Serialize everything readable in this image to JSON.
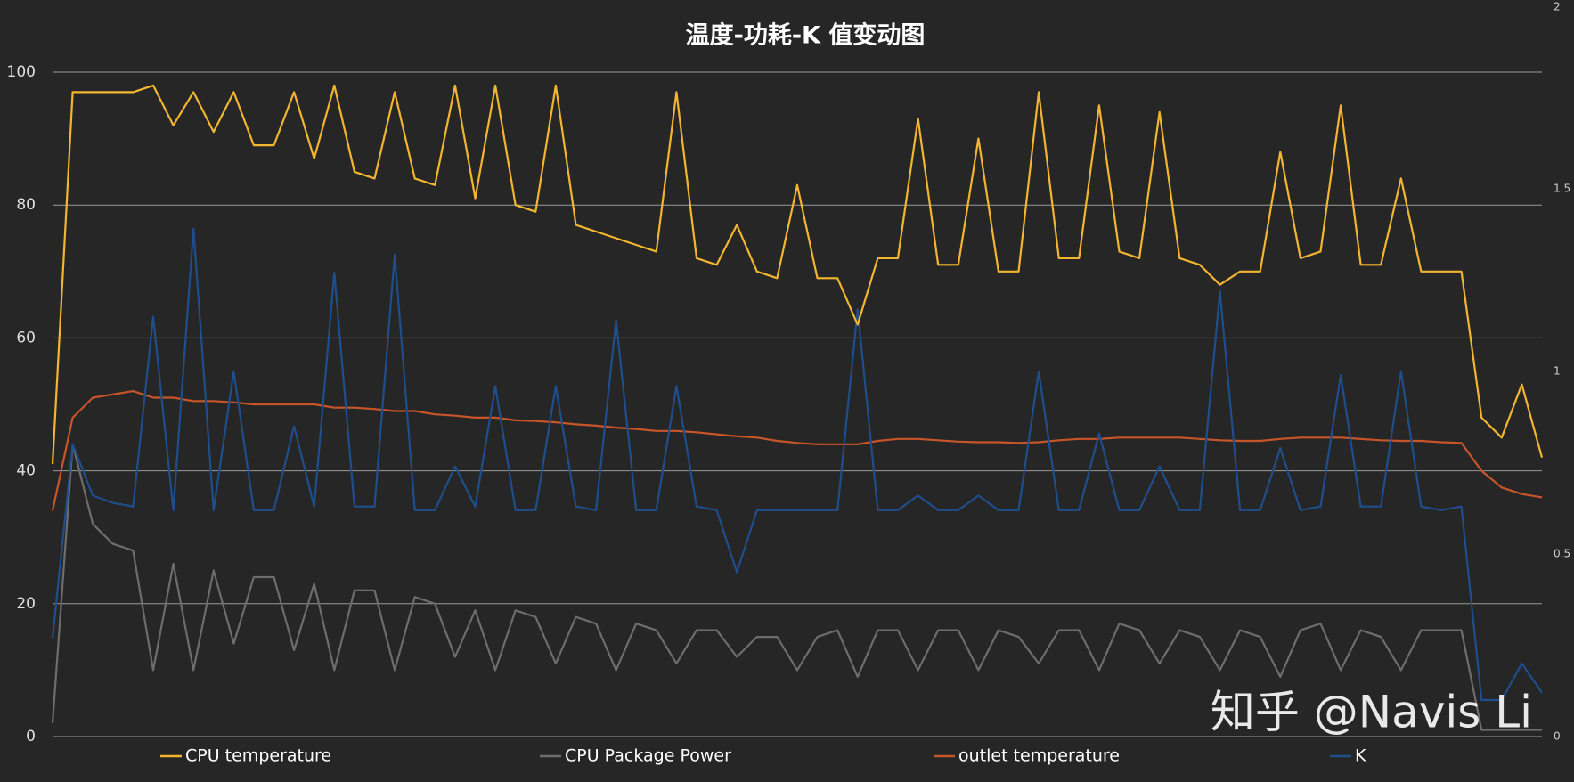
{
  "chart_data": {
    "type": "line",
    "title": "温度-功耗-K 值变动图",
    "watermark": "知乎 @Navis Li",
    "ylim": [
      0,
      100
    ],
    "yticks": [
      0,
      20,
      40,
      60,
      80,
      100
    ],
    "y2lim": [
      0,
      2
    ],
    "y2ticks": [
      0,
      0.5,
      1,
      1.5,
      2
    ],
    "grid": true,
    "legend": "bottom",
    "series": [
      {
        "name": "CPU temperature",
        "color": "#f2b52f",
        "values": [
          41,
          97,
          97,
          97,
          97,
          98,
          92,
          97,
          91,
          97,
          89,
          89,
          97,
          87,
          98,
          85,
          84,
          97,
          84,
          83,
          98,
          81,
          98,
          80,
          79,
          98,
          77,
          76,
          75,
          74,
          73,
          97,
          72,
          71,
          77,
          70,
          69,
          83,
          69,
          69,
          62,
          72,
          72,
          93,
          71,
          71,
          90,
          70,
          70,
          97,
          72,
          72,
          95,
          73,
          72,
          94,
          72,
          71,
          68,
          70,
          70,
          88,
          72,
          73,
          95,
          71,
          71,
          84,
          70,
          70,
          70,
          48,
          45,
          53,
          42
        ]
      },
      {
        "name": "CPU Package Power",
        "color": "#6d6d6d",
        "values": [
          2,
          44,
          32,
          29,
          28,
          10,
          26,
          10,
          25,
          14,
          24,
          24,
          13,
          23,
          10,
          22,
          22,
          10,
          21,
          20,
          12,
          19,
          10,
          19,
          18,
          11,
          18,
          17,
          10,
          17,
          16,
          11,
          16,
          16,
          12,
          15,
          15,
          10,
          15,
          16,
          9,
          16,
          16,
          10,
          16,
          16,
          10,
          16,
          15,
          11,
          16,
          16,
          10,
          17,
          16,
          11,
          16,
          15,
          10,
          16,
          15,
          9,
          16,
          17,
          10,
          16,
          15,
          10,
          16,
          16,
          16,
          1,
          1,
          1,
          1
        ]
      },
      {
        "name": "outlet temperature",
        "color": "#c8552a",
        "values": [
          34,
          48,
          51,
          51.5,
          52,
          51,
          51,
          50.5,
          50.5,
          50.3,
          50,
          50,
          50,
          50,
          49.5,
          49.5,
          49.3,
          49,
          49,
          48.5,
          48.3,
          48,
          48,
          47.6,
          47.5,
          47.3,
          47,
          46.8,
          46.5,
          46.3,
          46,
          46,
          45.8,
          45.5,
          45.2,
          45,
          44.5,
          44.2,
          44,
          44,
          44,
          44.5,
          44.8,
          44.8,
          44.6,
          44.4,
          44.3,
          44.3,
          44.2,
          44.3,
          44.6,
          44.8,
          44.8,
          45,
          45,
          45,
          45,
          44.8,
          44.6,
          44.5,
          44.5,
          44.8,
          45,
          45,
          45,
          44.8,
          44.6,
          44.5,
          44.5,
          44.3,
          44.2,
          40,
          37.5,
          36.5,
          36
        ]
      },
      {
        "name": "K",
        "color": "#1f4e8c",
        "axis": "y2",
        "values": [
          0.27,
          0.8,
          0.66,
          0.64,
          0.63,
          1.15,
          0.62,
          1.39,
          0.62,
          1.0,
          0.62,
          0.62,
          0.85,
          0.63,
          1.27,
          0.63,
          0.63,
          1.32,
          0.62,
          0.62,
          0.74,
          0.63,
          0.96,
          0.62,
          0.62,
          0.96,
          0.63,
          0.62,
          1.14,
          0.62,
          0.62,
          0.96,
          0.63,
          0.62,
          0.45,
          0.62,
          0.62,
          0.62,
          0.62,
          0.62,
          1.17,
          0.62,
          0.62,
          0.66,
          0.62,
          0.62,
          0.66,
          0.62,
          0.62,
          1.0,
          0.62,
          0.62,
          0.83,
          0.62,
          0.62,
          0.74,
          0.62,
          0.62,
          1.22,
          0.62,
          0.62,
          0.79,
          0.62,
          0.63,
          0.99,
          0.63,
          0.63,
          1.0,
          0.63,
          0.62,
          0.63,
          0.1,
          0.1,
          0.2,
          0.12
        ]
      }
    ]
  }
}
